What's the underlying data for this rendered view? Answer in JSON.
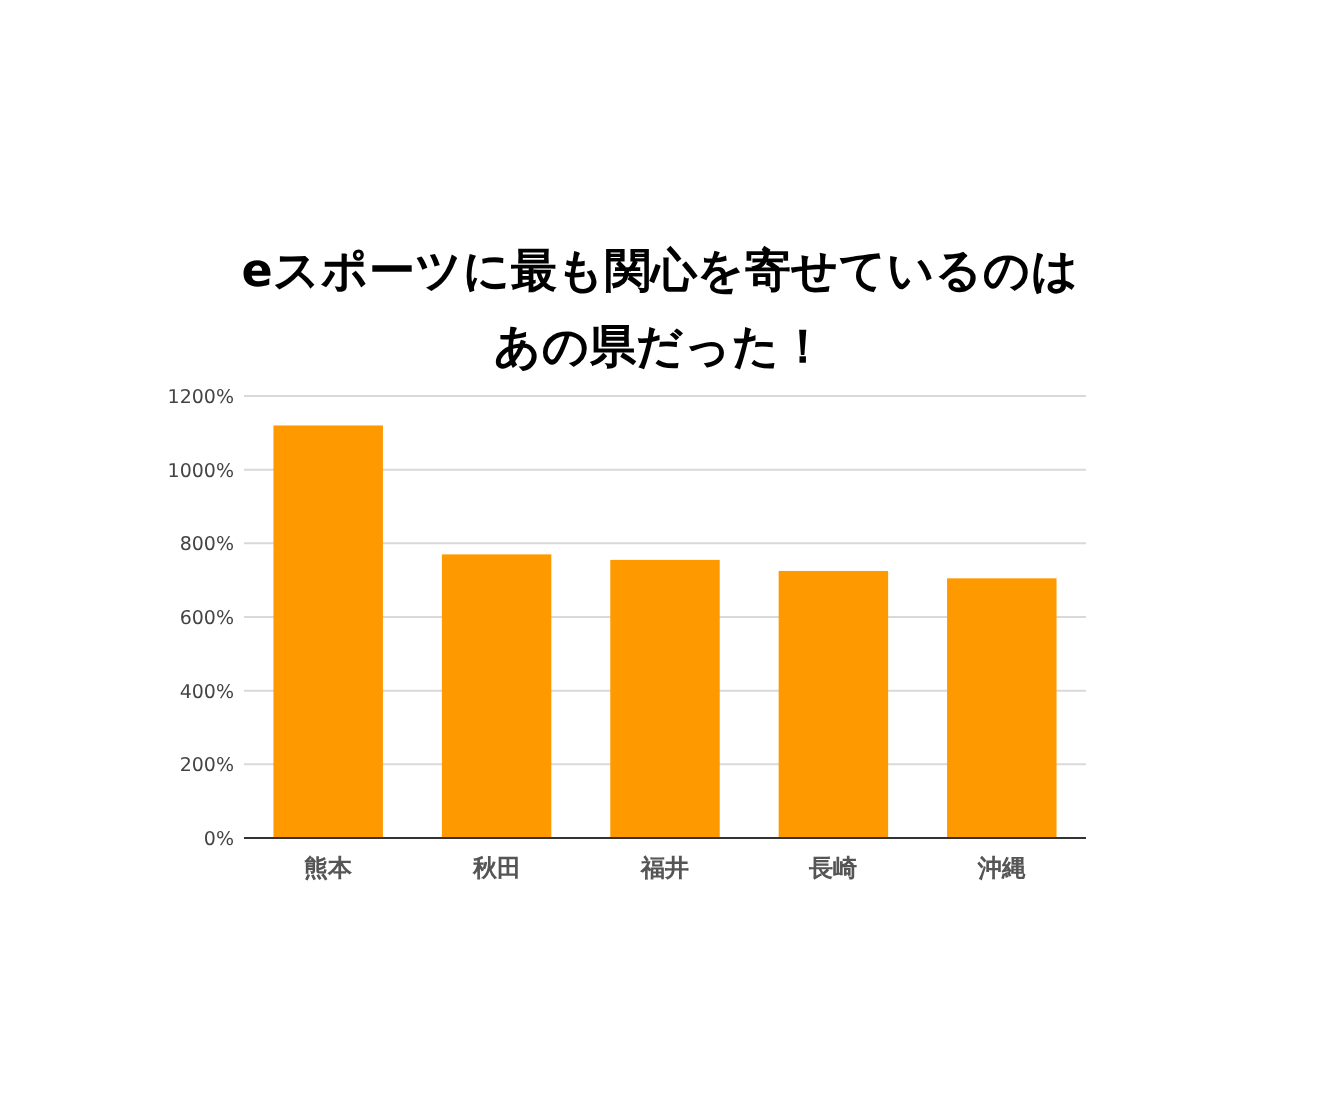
{
  "chart_data": {
    "type": "bar",
    "title": "eスポーツに最も関心を寄せているのはあの県だった！",
    "categories": [
      "熊本",
      "秋田",
      "福井",
      "長崎",
      "沖縄"
    ],
    "values": [
      1120,
      770,
      755,
      725,
      705
    ],
    "color": "#ff9900",
    "ylim": [
      0,
      1200
    ],
    "yticks": [
      {
        "value": 0,
        "label": "0%"
      },
      {
        "value": 200,
        "label": "200%"
      },
      {
        "value": 400,
        "label": "400%"
      },
      {
        "value": 600,
        "label": "600%"
      },
      {
        "value": 800,
        "label": "800%"
      },
      {
        "value": 1000,
        "label": "1000%"
      },
      {
        "value": 1200,
        "label": "1200%"
      }
    ],
    "grid": "y"
  }
}
